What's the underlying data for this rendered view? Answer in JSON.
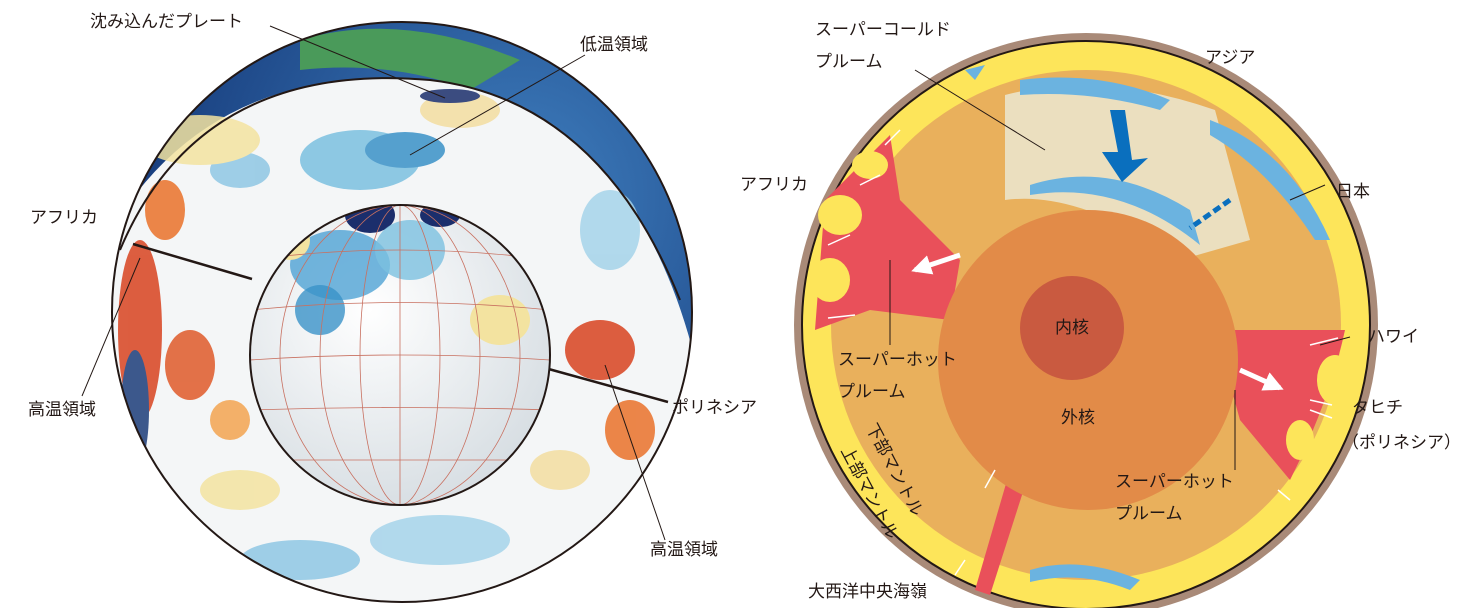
{
  "left_figure": {
    "labels": [
      "沈み込んだプレート",
      "低温領域",
      "アフリカ",
      "高温領域",
      "ポリネシア",
      "高温領域"
    ]
  },
  "right_figure": {
    "labels": [
      "スーパーコールド",
      "プルーム",
      "アジア",
      "アフリカ",
      "日本",
      "内核",
      "外核",
      "スーパーホット",
      "プルーム",
      "ハワイ",
      "タヒチ",
      "（ポリネシア）",
      "スーパーホット",
      "プルーム",
      "下部マントル",
      "上部マントル",
      "大西洋中央海嶺"
    ]
  }
}
